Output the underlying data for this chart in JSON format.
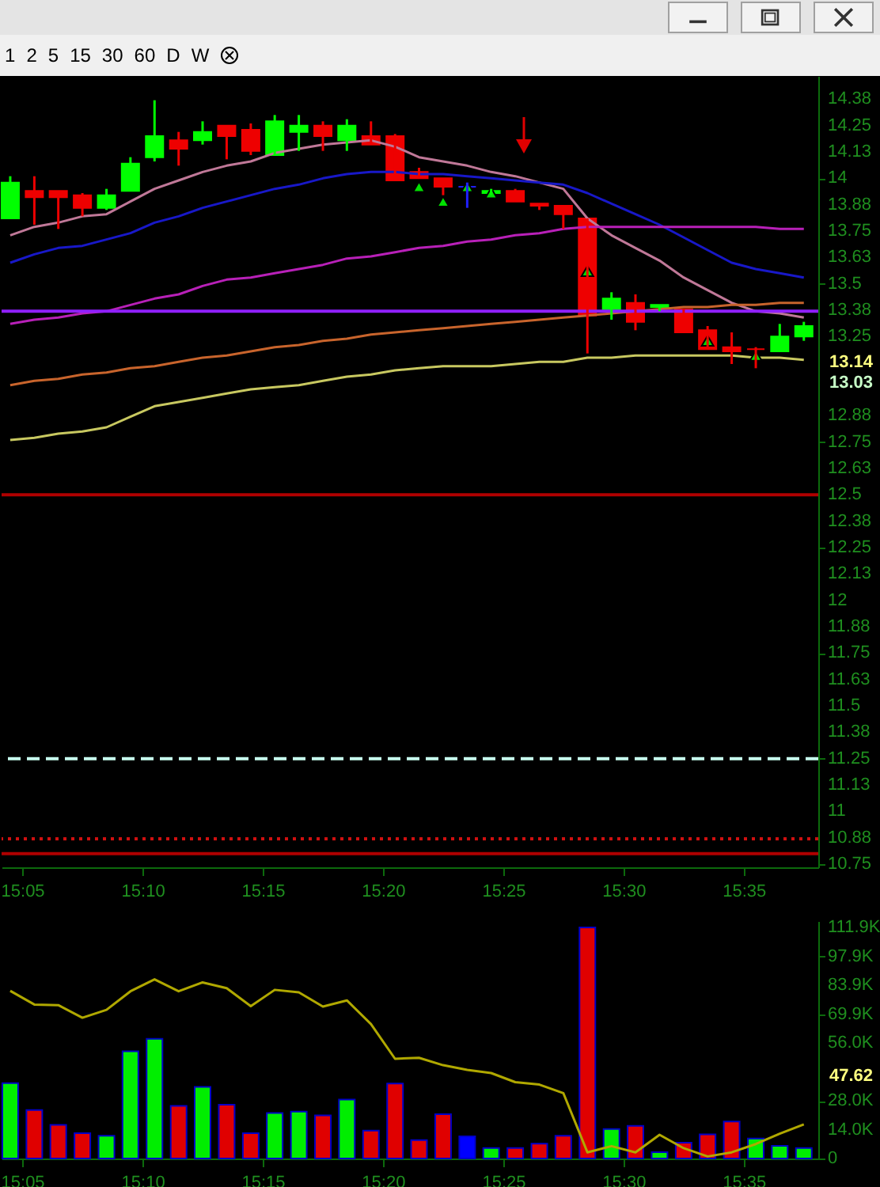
{
  "chart_data": [
    {
      "type": "other",
      "annotations": [
        "1",
        "2",
        "5",
        "15",
        "30",
        "60",
        "D",
        "W"
      ]
    },
    {
      "type": "candlestick",
      "x": [
        15.075,
        15.0917,
        15.1083,
        15.125,
        15.1417,
        15.1583,
        15.175,
        15.1917,
        15.2083,
        15.225,
        15.2417,
        15.2583,
        15.275,
        15.2917,
        15.3083,
        15.325,
        15.3417,
        15.3583,
        15.375,
        15.3917,
        15.4083,
        15.425,
        15.4417,
        15.4583,
        15.475,
        15.4917,
        15.5083,
        15.525,
        15.5417,
        15.5583,
        15.575,
        15.5917,
        15.6083,
        15.625
      ],
      "ohlc": [
        [
          13.81,
          14.01,
          13.81,
          13.98
        ],
        [
          13.94,
          14.01,
          13.78,
          13.91
        ],
        [
          13.94,
          13.94,
          13.76,
          13.91
        ],
        [
          13.92,
          13.93,
          13.82,
          13.86
        ],
        [
          13.86,
          13.95,
          13.85,
          13.92
        ],
        [
          13.94,
          14.1,
          13.94,
          14.07
        ],
        [
          14.1,
          14.37,
          14.08,
          14.2
        ],
        [
          14.18,
          14.22,
          14.06,
          14.14
        ],
        [
          14.18,
          14.27,
          14.16,
          14.22
        ],
        [
          14.25,
          14.25,
          14.09,
          14.2
        ],
        [
          14.23,
          14.26,
          14.11,
          14.13
        ],
        [
          14.11,
          14.3,
          14.11,
          14.27
        ],
        [
          14.22,
          14.3,
          14.13,
          14.25
        ],
        [
          14.25,
          14.27,
          14.13,
          14.2
        ],
        [
          14.18,
          14.28,
          14.13,
          14.25
        ],
        [
          14.2,
          14.27,
          14.16,
          14.16
        ],
        [
          14.2,
          14.21,
          13.99,
          13.99
        ],
        [
          14.03,
          14.05,
          14,
          14
        ],
        [
          14,
          14,
          13.92,
          13.96
        ],
        [
          13.96,
          13.98,
          13.86,
          13.96
        ],
        [
          13.93,
          13.95,
          13.92,
          13.94
        ],
        [
          13.94,
          13.95,
          13.89,
          13.89
        ],
        [
          13.88,
          13.88,
          13.85,
          13.87
        ],
        [
          13.87,
          13.87,
          13.76,
          13.83
        ],
        [
          13.81,
          13.81,
          13.17,
          13.35
        ],
        [
          13.38,
          13.46,
          13.33,
          13.43
        ],
        [
          13.41,
          13.45,
          13.28,
          13.32
        ],
        [
          13.39,
          13.4,
          13.37,
          13.4
        ],
        [
          13.38,
          13.38,
          13.27,
          13.27
        ],
        [
          13.28,
          13.3,
          13.19,
          13.19
        ],
        [
          13.2,
          13.27,
          13.12,
          13.18
        ],
        [
          13.19,
          13.2,
          13.1,
          13.19
        ],
        [
          13.18,
          13.31,
          13.18,
          13.25
        ],
        [
          13.25,
          13.32,
          13.23,
          13.3
        ]
      ],
      "colors": [
        "#00ff00",
        "#ee0000",
        "#ee0000",
        "#ee0000",
        "#00ff00",
        "#00ff00",
        "#00ff00",
        "#ee0000",
        "#00ff00",
        "#ee0000",
        "#ee0000",
        "#00ff00",
        "#00ff00",
        "#ee0000",
        "#00ff00",
        "#ee0000",
        "#ee0000",
        "#ee0000",
        "#ee0000",
        "#2020ff",
        "#00ff00",
        "#ee0000",
        "#ee0000",
        "#ee0000",
        "#ee0000",
        "#00ff00",
        "#ee0000",
        "#00ff00",
        "#ee0000",
        "#ee0000",
        "#ee0000",
        "#ee0000",
        "#00ff00",
        "#00ff00"
      ],
      "series": [
        {
          "type": "line",
          "color": "#c07898",
          "values": [
            13.73,
            13.77,
            13.79,
            13.82,
            13.83,
            13.89,
            13.95,
            13.99,
            14.03,
            14.06,
            14.08,
            14.12,
            14.14,
            14.16,
            14.17,
            14.18,
            14.15,
            14.1,
            14.08,
            14.06,
            14.03,
            14.01,
            13.98,
            13.95,
            13.81,
            13.73,
            13.67,
            13.61,
            13.53,
            13.47,
            13.41,
            13.37,
            13.36,
            13.34
          ]
        },
        {
          "type": "line",
          "color": "#1818c8",
          "values": [
            13.6,
            13.64,
            13.67,
            13.68,
            13.71,
            13.74,
            13.79,
            13.82,
            13.86,
            13.89,
            13.92,
            13.95,
            13.97,
            14,
            14.02,
            14.03,
            14.03,
            14.02,
            14.02,
            14.01,
            14,
            13.99,
            13.98,
            13.97,
            13.93,
            13.88,
            13.83,
            13.78,
            13.72,
            13.66,
            13.6,
            13.57,
            13.55,
            13.53
          ]
        },
        {
          "type": "line",
          "color": "#b820b8",
          "values": [
            13.31,
            13.33,
            13.34,
            13.36,
            13.37,
            13.4,
            13.43,
            13.45,
            13.49,
            13.52,
            13.53,
            13.55,
            13.57,
            13.59,
            13.62,
            13.63,
            13.65,
            13.67,
            13.68,
            13.7,
            13.71,
            13.73,
            13.74,
            13.76,
            13.77,
            13.77,
            13.77,
            13.77,
            13.77,
            13.77,
            13.77,
            13.77,
            13.76,
            13.76
          ]
        },
        {
          "type": "line",
          "color": "#c8642c",
          "values": [
            13.02,
            13.04,
            13.05,
            13.07,
            13.08,
            13.1,
            13.11,
            13.13,
            13.15,
            13.16,
            13.18,
            13.2,
            13.21,
            13.23,
            13.24,
            13.26,
            13.27,
            13.28,
            13.29,
            13.3,
            13.31,
            13.32,
            13.33,
            13.34,
            13.35,
            13.36,
            13.37,
            13.38,
            13.39,
            13.39,
            13.4,
            13.4,
            13.41,
            13.41
          ]
        },
        {
          "type": "line",
          "color": "#c8c860",
          "values": [
            12.76,
            12.77,
            12.79,
            12.8,
            12.82,
            12.87,
            12.92,
            12.94,
            12.96,
            12.98,
            13,
            13.01,
            13.02,
            13.04,
            13.06,
            13.07,
            13.09,
            13.1,
            13.11,
            13.11,
            13.11,
            13.12,
            13.13,
            13.13,
            13.15,
            13.15,
            13.16,
            13.16,
            13.16,
            13.16,
            13.16,
            13.15,
            13.15,
            13.14
          ]
        },
        {
          "type": "scatter",
          "color": "#00e000",
          "marker": "triangle",
          "x": [
            15.3583,
            15.375,
            15.3917,
            15.4083,
            15.475,
            15.5583,
            15.5917
          ],
          "values": [
            13.96,
            13.89,
            13.96,
            13.93,
            13.56,
            13.23,
            13.16
          ]
        }
      ],
      "ref_lines": [
        {
          "axis": "y",
          "value": 13.37,
          "color": "#9020ff"
        },
        {
          "axis": "y",
          "value": 12.5,
          "color": "#b00000"
        },
        {
          "axis": "y",
          "value": 11.25,
          "color": "#c8fff0",
          "line_style": "dashed"
        },
        {
          "axis": "y",
          "value": 10.87,
          "color": "#d01010",
          "line_style": "dotted"
        },
        {
          "axis": "y",
          "value": 10.8,
          "color": "#b00000"
        }
      ],
      "annotations": [
        "13.14",
        "13.03"
      ],
      "xlim": [
        15.069,
        15.635
      ],
      "xticks": [
        {
          "value": 15.0833,
          "label": "15:05"
        },
        {
          "value": 15.1667,
          "label": "15:10"
        },
        {
          "value": 15.25,
          "label": "15:15"
        },
        {
          "value": 15.3333,
          "label": "15:20"
        },
        {
          "value": 15.4167,
          "label": "15:25"
        },
        {
          "value": 15.5,
          "label": "15:30"
        },
        {
          "value": 15.5833,
          "label": "15:35"
        }
      ],
      "ylim": [
        10.735,
        14.485
      ],
      "yticks": [
        {
          "value": 14.375,
          "label": "14.38"
        },
        14.25,
        {
          "value": 14.125,
          "label": "14.13"
        },
        14,
        {
          "value": 13.875,
          "label": "13.88"
        },
        13.75,
        {
          "value": 13.625,
          "label": "13.63"
        },
        13.5,
        {
          "value": 13.375,
          "label": "13.38"
        },
        13.25,
        {
          "value": 12.875,
          "label": "12.88"
        },
        12.75,
        {
          "value": 12.625,
          "label": "12.63"
        },
        12.5,
        {
          "value": 12.375,
          "label": "12.38"
        },
        12.25,
        {
          "value": 12.125,
          "label": "12.13"
        },
        12,
        {
          "value": 11.875,
          "label": "11.88"
        },
        11.75,
        {
          "value": 11.625,
          "label": "11.63"
        },
        11.5,
        {
          "value": 11.375,
          "label": "11.38"
        },
        11.25,
        {
          "value": 11.125,
          "label": "11.13"
        },
        11,
        {
          "value": 10.875,
          "label": "10.88"
        },
        10.75
      ]
    },
    {
      "type": "bar",
      "x": [
        15.075,
        15.0917,
        15.1083,
        15.125,
        15.1417,
        15.1583,
        15.175,
        15.1917,
        15.2083,
        15.225,
        15.2417,
        15.2583,
        15.275,
        15.2917,
        15.3083,
        15.325,
        15.3417,
        15.3583,
        15.375,
        15.3917,
        15.4083,
        15.425,
        15.4417,
        15.4583,
        15.475,
        15.4917,
        15.5083,
        15.525,
        15.5417,
        15.5583,
        15.575,
        15.5917,
        15.6083,
        15.625
      ],
      "series": [
        {
          "type": "bar",
          "values": [
            36500,
            23500,
            16300,
            12300,
            11000,
            51900,
            58000,
            25500,
            34700,
            26100,
            12300,
            22000,
            22700,
            20900,
            28600,
            13500,
            36300,
            8900,
            21500,
            10700,
            5100,
            5100,
            7200,
            11000,
            111900,
            14300,
            15800,
            3100,
            7700,
            11700,
            17900,
            9700,
            6100,
            5100
          ],
          "colors": [
            "#00ee00",
            "#e00000",
            "#e00000",
            "#e00000",
            "#00ee00",
            "#00ee00",
            "#00ee00",
            "#e00000",
            "#00ee00",
            "#e00000",
            "#e00000",
            "#00ee00",
            "#00ee00",
            "#e00000",
            "#00ee00",
            "#e00000",
            "#e00000",
            "#e00000",
            "#e00000",
            "#0000ff",
            "#00ee00",
            "#e00000",
            "#e00000",
            "#e00000",
            "#e00000",
            "#00ee00",
            "#e00000",
            "#00ee00",
            "#e00000",
            "#e00000",
            "#e00000",
            "#00ee00",
            "#00ee00",
            "#00ee00"
          ]
        },
        {
          "type": "line",
          "color": "#b0a800",
          "values": [
            81200,
            74600,
            74300,
            68200,
            72000,
            81000,
            86800,
            81000,
            85300,
            82500,
            73800,
            81700,
            80500,
            73600,
            76600,
            65100,
            48300,
            48800,
            45200,
            42900,
            41400,
            37000,
            35800,
            31700,
            3000,
            6000,
            3000,
            11500,
            5000,
            1000,
            3000,
            7000,
            12000,
            16500
          ]
        }
      ],
      "annotations": [
        "47.62"
      ],
      "xlim": [
        15.069,
        15.635
      ],
      "xticks": [
        {
          "value": 15.0833,
          "label": "15:05"
        },
        {
          "value": 15.1667,
          "label": "15:10"
        },
        {
          "value": 15.25,
          "label": "15:15"
        },
        {
          "value": 15.3333,
          "label": "15:20"
        },
        {
          "value": 15.4167,
          "label": "15:25"
        },
        {
          "value": 15.5,
          "label": "15:30"
        },
        {
          "value": 15.5833,
          "label": "15:35"
        }
      ],
      "ylim": [
        0,
        115000
      ],
      "yticks": [
        0,
        {
          "value": 13987.5,
          "label": "14.0K"
        },
        {
          "value": 27975,
          "label": "28.0K"
        },
        {
          "value": 55950,
          "label": "56.0K"
        },
        {
          "value": 69937.5,
          "label": "69.9K"
        },
        {
          "value": 83925,
          "label": "83.9K"
        },
        {
          "value": 97912.5,
          "label": "97.9K"
        },
        {
          "value": 111900,
          "label": "111.9K"
        }
      ]
    }
  ]
}
